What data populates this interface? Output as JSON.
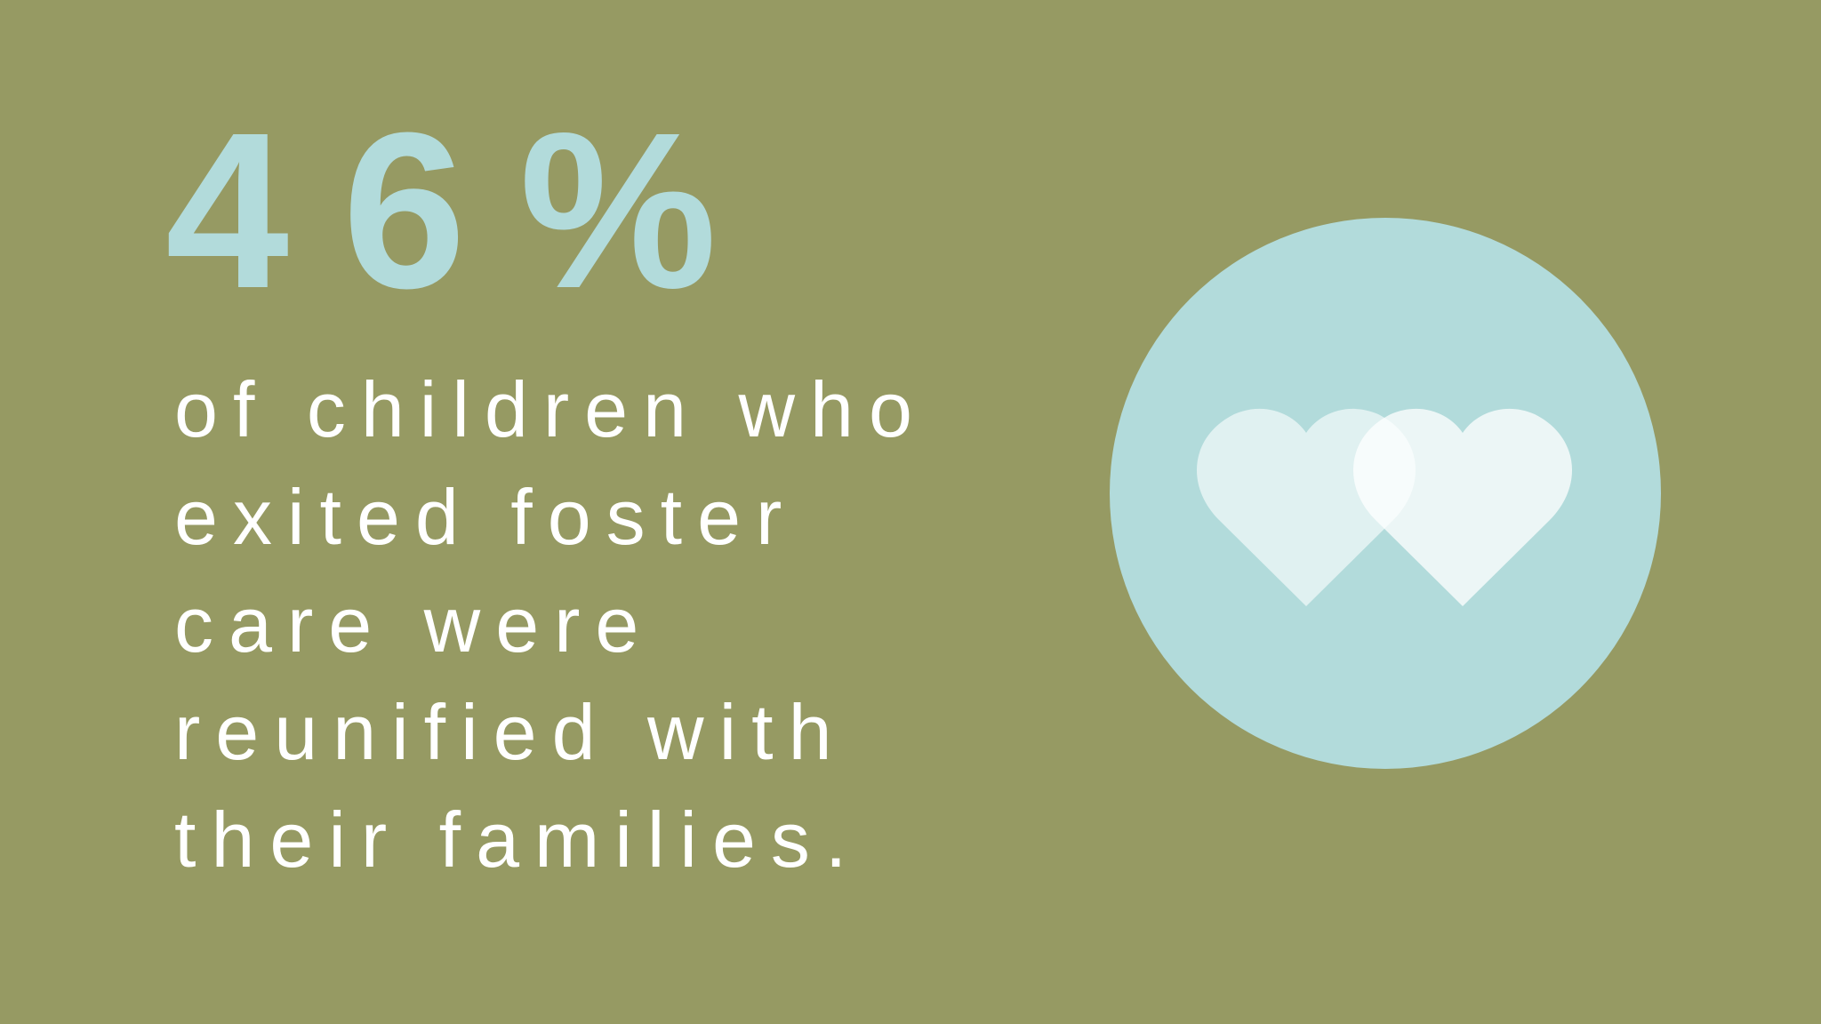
{
  "stat": "46%",
  "description": [
    "of children who",
    "exited foster",
    "care were",
    "reunified with",
    "their families."
  ]
}
